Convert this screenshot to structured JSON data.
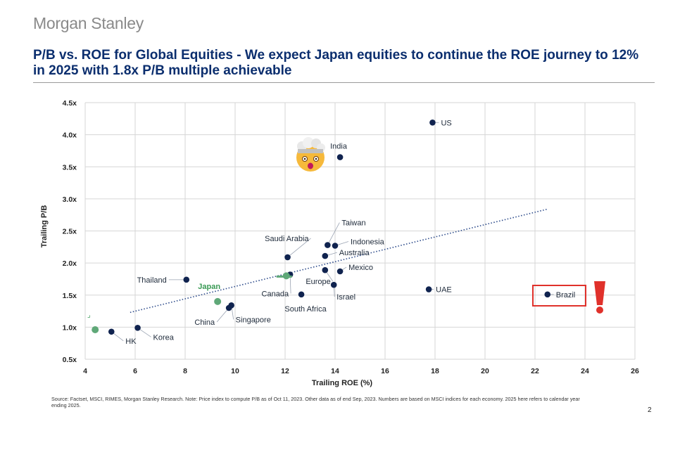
{
  "brand": "Morgan Stanley",
  "title": "P/B vs. ROE for Global Equities - We expect Japan equities to continue the ROE journey to 12% in 2025 with 1.8x P/B multiple achievable",
  "source_note": "Source: Factset, MSCI, RIMES, Morgan Stanley Research. Note: Price index to compute P/B as of Oct 11, 2023. Other data as of end Sep, 2023. Numbers are based on MSCI indices for each economy. 2025 here refers to calendar year ending 2025.",
  "page_number": "2",
  "colors": {
    "title": "#0b2e6e",
    "point": "#10234f",
    "japan_point": "#5fa878",
    "japan_label": "#3a9a55",
    "trend": "#2c4a8a",
    "highlight_box": "#e0312b",
    "exclamation": "#e0312b",
    "grid": "#d6d6d6"
  },
  "chart_data": {
    "type": "scatter",
    "xlabel": "Trailing ROE (%)",
    "ylabel": "Trailing P/B",
    "xlim": [
      4,
      26
    ],
    "ylim": [
      0.5,
      4.5
    ],
    "x_ticks": [
      {
        "value": 4,
        "label": "4"
      },
      {
        "value": 6,
        "label": "6"
      },
      {
        "value": 8,
        "label": "8"
      },
      {
        "value": 10,
        "label": "10"
      },
      {
        "value": 12,
        "label": "12"
      },
      {
        "value": 14,
        "label": "14"
      },
      {
        "value": 16,
        "label": "16"
      },
      {
        "value": 18,
        "label": "18"
      },
      {
        "value": 20,
        "label": "20"
      },
      {
        "value": 22,
        "label": "22"
      },
      {
        "value": 24,
        "label": "24"
      },
      {
        "value": 26,
        "label": "26"
      }
    ],
    "y_ticks": [
      {
        "value": 0.5,
        "label": "0.5x"
      },
      {
        "value": 1.0,
        "label": "1.0x"
      },
      {
        "value": 1.5,
        "label": "1.5x"
      },
      {
        "value": 2.0,
        "label": "2.0x"
      },
      {
        "value": 2.5,
        "label": "2.5x"
      },
      {
        "value": 3.0,
        "label": "3.0x"
      },
      {
        "value": 3.5,
        "label": "3.5x"
      },
      {
        "value": 4.0,
        "label": "4.0x"
      },
      {
        "value": 4.5,
        "label": "4.5x"
      }
    ],
    "grid": true,
    "points": [
      {
        "name": "US",
        "x": 17.9,
        "y": 4.19
      },
      {
        "name": "India",
        "x": 14.2,
        "y": 3.65
      },
      {
        "name": "Taiwan",
        "x": 13.7,
        "y": 2.28
      },
      {
        "name": "Indonesia",
        "x": 14.0,
        "y": 2.27
      },
      {
        "name": "Saudi Arabia",
        "x": 12.1,
        "y": 2.09
      },
      {
        "name": "Australia",
        "x": 13.6,
        "y": 2.11
      },
      {
        "name": "Mexico",
        "x": 14.2,
        "y": 1.87
      },
      {
        "name": "Europe",
        "x": 13.6,
        "y": 1.89
      },
      {
        "name": "Canada",
        "x": 12.2,
        "y": 1.82
      },
      {
        "name": "Thailand",
        "x": 8.05,
        "y": 1.74
      },
      {
        "name": "Israel",
        "x": 13.95,
        "y": 1.66
      },
      {
        "name": "South Africa",
        "x": 12.65,
        "y": 1.51
      },
      {
        "name": "UAE",
        "x": 17.75,
        "y": 1.59
      },
      {
        "name": "Brazil",
        "x": 22.5,
        "y": 1.51
      },
      {
        "name": "Singapore",
        "x": 9.85,
        "y": 1.34
      },
      {
        "name": "China",
        "x": 9.75,
        "y": 1.3
      },
      {
        "name": "Korea",
        "x": 6.1,
        "y": 0.99
      },
      {
        "name": "HK",
        "x": 5.05,
        "y": 0.93
      }
    ],
    "japan_points": [
      {
        "name": "Japan",
        "label": "Japan",
        "x": 9.3,
        "y": 1.4
      },
      {
        "name": "Japan 2025",
        "label": "",
        "x": 12.05,
        "y": 1.8
      },
      {
        "name": "Japan low",
        "label": "",
        "x": 4.4,
        "y": 0.96
      }
    ],
    "trendline": {
      "x_start": 5.8,
      "y_start": 1.23,
      "x_end": 22.5,
      "y_end": 2.84
    },
    "highlight": "Brazil"
  }
}
